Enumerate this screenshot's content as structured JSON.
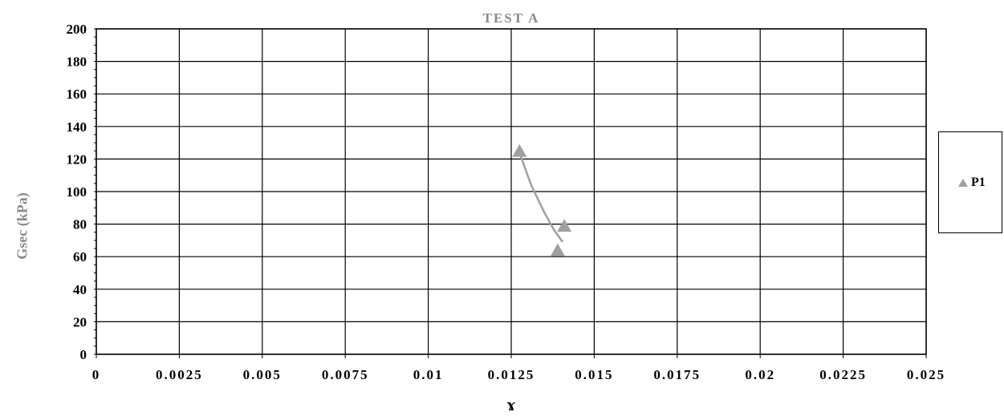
{
  "chart_data": {
    "type": "scatter",
    "title": "TEST A",
    "xlabel": "ɤ",
    "ylabel": "Gsec (kPa)",
    "xlim": [
      0,
      0.025
    ],
    "ylim": [
      0,
      200
    ],
    "x_ticks": [
      "0",
      "0.0025",
      "0.005",
      "0.0075",
      "0.01",
      "0.0125",
      "0.015",
      "0.0175",
      "0.02",
      "0.0225",
      "0.025"
    ],
    "y_ticks": [
      "0",
      "20",
      "40",
      "60",
      "80",
      "100",
      "120",
      "140",
      "160",
      "180",
      "200"
    ],
    "grid": true,
    "legend_position": "right",
    "series": [
      {
        "name": "P1",
        "color": "#a0a0a0",
        "marker": "triangle",
        "points": [
          {
            "x": 0.01275,
            "y": 125
          },
          {
            "x": 0.0141,
            "y": 79
          },
          {
            "x": 0.0139,
            "y": 64
          }
        ],
        "trendline": [
          {
            "x": 0.01275,
            "y": 124
          },
          {
            "x": 0.0131,
            "y": 104
          },
          {
            "x": 0.0135,
            "y": 87
          },
          {
            "x": 0.0138,
            "y": 76
          },
          {
            "x": 0.01405,
            "y": 69
          }
        ]
      }
    ]
  }
}
